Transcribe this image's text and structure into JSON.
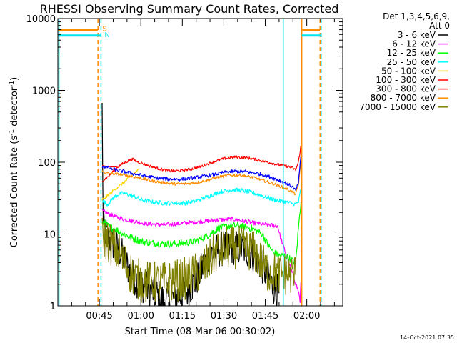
{
  "chart_data": {
    "type": "line",
    "title": "RHESSI Observing Summary Count Rates, Corrected",
    "xlabel": "Start Time (08-Mar-06 00:30:02)",
    "ylabel": "Corrected Count Rate (s",
    "ylabel_sup1": "-1",
    "ylabel_mid": " detector",
    "ylabel_sup2": "-1",
    "ylabel_end": ")",
    "yscale": "log",
    "ylim": [
      1,
      10000
    ],
    "xlim_minutes": [
      30,
      133
    ],
    "yticks": [
      {
        "value": 1,
        "label": "1"
      },
      {
        "value": 10,
        "label": "10"
      },
      {
        "value": 100,
        "label": "100"
      },
      {
        "value": 1000,
        "label": "1000"
      },
      {
        "value": 10000,
        "label": "10000"
      }
    ],
    "xticks": [
      {
        "minute": 45,
        "label": "00:45"
      },
      {
        "minute": 60,
        "label": "01:00"
      },
      {
        "minute": 75,
        "label": "01:15"
      },
      {
        "minute": 90,
        "label": "01:30"
      },
      {
        "minute": 105,
        "label": "01:45"
      },
      {
        "minute": 120,
        "label": "02:00"
      }
    ],
    "legend_header": [
      "Det 1,3,4,5,6,9,",
      "Att 0"
    ],
    "legend_position": "right",
    "series": [
      {
        "name": "3 - 6 keV",
        "color": "#000000",
        "noise": 0.25,
        "points": [
          [
            46,
            560
          ],
          [
            46.4,
            13
          ],
          [
            48,
            9
          ],
          [
            52,
            6
          ],
          [
            54,
            4.5
          ],
          [
            56,
            3
          ],
          [
            58,
            2.4
          ],
          [
            60,
            2
          ],
          [
            62,
            1.8
          ],
          [
            64,
            1.6
          ],
          [
            66,
            1.4
          ],
          [
            68,
            1.2
          ],
          [
            70,
            1.2
          ],
          [
            72,
            1.3
          ],
          [
            74,
            1.4
          ],
          [
            76,
            1.5
          ],
          [
            78,
            1.8
          ],
          [
            80,
            2.3
          ],
          [
            82,
            3.2
          ],
          [
            84,
            4.5
          ],
          [
            86,
            5.5
          ],
          [
            88,
            6
          ],
          [
            90,
            6.3
          ],
          [
            94,
            6.5
          ],
          [
            98,
            6
          ],
          [
            100,
            5.5
          ],
          [
            102,
            4.5
          ],
          [
            104,
            3.5
          ],
          [
            106,
            2.5
          ],
          [
            108,
            1.8
          ],
          [
            110,
            1.5
          ]
        ]
      },
      {
        "name": "6 - 12 keV",
        "color": "#ff00ff",
        "noise": 0.03,
        "points": [
          [
            46,
            21
          ],
          [
            50,
            18
          ],
          [
            54,
            16
          ],
          [
            58,
            15
          ],
          [
            62,
            14
          ],
          [
            66,
            13.5
          ],
          [
            70,
            13.5
          ],
          [
            74,
            14
          ],
          [
            78,
            14.5
          ],
          [
            82,
            15
          ],
          [
            86,
            15.5
          ],
          [
            90,
            16
          ],
          [
            94,
            16
          ],
          [
            98,
            15
          ],
          [
            102,
            14
          ],
          [
            106,
            13.5
          ],
          [
            109.5,
            13
          ],
          [
            110.5,
            9
          ],
          [
            117.2,
            1.5
          ],
          [
            117.6,
            1.1
          ],
          [
            117.9,
            2.2
          ]
        ]
      },
      {
        "name": "12 - 25 keV",
        "color": "#00ff00",
        "noise": 0.05,
        "points": [
          [
            46,
            15
          ],
          [
            48,
            13
          ],
          [
            52,
            11
          ],
          [
            56,
            9
          ],
          [
            60,
            8
          ],
          [
            64,
            7.5
          ],
          [
            68,
            7.3
          ],
          [
            72,
            7.3
          ],
          [
            76,
            7.5
          ],
          [
            80,
            8
          ],
          [
            84,
            9.5
          ],
          [
            88,
            12
          ],
          [
            92,
            13
          ],
          [
            96,
            13
          ],
          [
            100,
            12
          ],
          [
            104,
            10
          ],
          [
            106,
            7
          ],
          [
            108,
            5.5
          ],
          [
            110,
            5
          ],
          [
            112,
            5
          ],
          [
            114,
            4.5
          ],
          [
            116,
            4
          ],
          [
            117,
            12
          ],
          [
            117.9,
            28
          ]
        ]
      },
      {
        "name": "25 - 50 keV",
        "color": "#00ffff",
        "noise": 0.03,
        "points": [
          [
            46,
            29
          ],
          [
            48,
            26
          ],
          [
            50,
            32
          ],
          [
            52,
            36
          ],
          [
            54,
            37
          ],
          [
            56,
            35
          ],
          [
            58,
            33
          ],
          [
            60,
            30
          ],
          [
            64,
            28
          ],
          [
            68,
            27
          ],
          [
            72,
            27
          ],
          [
            76,
            27
          ],
          [
            80,
            29
          ],
          [
            84,
            33
          ],
          [
            88,
            38
          ],
          [
            92,
            41
          ],
          [
            96,
            41
          ],
          [
            100,
            38
          ],
          [
            104,
            34
          ],
          [
            108,
            30
          ],
          [
            112,
            28
          ],
          [
            114,
            27
          ],
          [
            116,
            26
          ],
          [
            117,
            28
          ],
          [
            117.9,
            42
          ]
        ]
      },
      {
        "name": "50 - 100 keV",
        "color": "#ffd700",
        "noise": 0.02,
        "points": [
          [
            46,
            30
          ],
          [
            48,
            34
          ],
          [
            50,
            40
          ],
          [
            52,
            46
          ],
          [
            54,
            53
          ],
          [
            56,
            62
          ],
          [
            58,
            72
          ],
          [
            59.5,
            80
          ]
        ]
      },
      {
        "name": "100 - 300 keV",
        "color": "#ff0000",
        "noise": 0.02,
        "points": [
          [
            46,
            55
          ],
          [
            48,
            62
          ],
          [
            50,
            75
          ],
          [
            52,
            88
          ],
          [
            54,
            98
          ],
          [
            55.5,
            105
          ],
          [
            57,
            110
          ],
          [
            59,
            101
          ],
          [
            62,
            92
          ],
          [
            66,
            82
          ],
          [
            70,
            76
          ],
          [
            74,
            76
          ],
          [
            78,
            80
          ],
          [
            82,
            88
          ],
          [
            86,
            100
          ],
          [
            90,
            112
          ],
          [
            94,
            118
          ],
          [
            98,
            116
          ],
          [
            102,
            108
          ],
          [
            106,
            100
          ],
          [
            110,
            92
          ],
          [
            113,
            88
          ],
          [
            115,
            82
          ],
          [
            116,
            78
          ],
          [
            117,
            100
          ],
          [
            117.9,
            170
          ]
        ]
      },
      {
        "name": "300 - 800 keV",
        "color": "#ff0000",
        "noise": 0.0,
        "points": [
          [
            46,
            90
          ],
          [
            48,
            87
          ],
          [
            50,
            86
          ],
          [
            51.5,
            87
          ]
        ]
      },
      {
        "name": "800 - 7000 keV",
        "color": "#ff8c00",
        "noise": 0.02,
        "points": [
          [
            46,
            75
          ],
          [
            48,
            70
          ],
          [
            52,
            68
          ],
          [
            56,
            64
          ],
          [
            60,
            60
          ],
          [
            64,
            55
          ],
          [
            68,
            52
          ],
          [
            72,
            50
          ],
          [
            76,
            50
          ],
          [
            80,
            52
          ],
          [
            84,
            56
          ],
          [
            88,
            62
          ],
          [
            92,
            66
          ],
          [
            96,
            66
          ],
          [
            100,
            62
          ],
          [
            104,
            56
          ],
          [
            108,
            50
          ],
          [
            112,
            44
          ],
          [
            114,
            40
          ],
          [
            116,
            36
          ],
          [
            117,
            48
          ],
          [
            117.9,
            110
          ]
        ]
      },
      {
        "name": "7000 - 15000 keV",
        "color": "#808000",
        "noise": 0.3,
        "points": [
          [
            46,
            9
          ],
          [
            48,
            8
          ],
          [
            52,
            5.5
          ],
          [
            54,
            4
          ],
          [
            56,
            3
          ],
          [
            58,
            2.5
          ],
          [
            60,
            2.2
          ],
          [
            64,
            2.1
          ],
          [
            68,
            2.1
          ],
          [
            72,
            2.2
          ],
          [
            76,
            2.4
          ],
          [
            80,
            2.8
          ],
          [
            84,
            3.8
          ],
          [
            86,
            5
          ],
          [
            88,
            6
          ],
          [
            92,
            6.5
          ],
          [
            96,
            6.5
          ],
          [
            100,
            6
          ],
          [
            102,
            5
          ],
          [
            104,
            3.8
          ],
          [
            106,
            3
          ],
          [
            110,
            2.8
          ],
          [
            114,
            2.7
          ],
          [
            116,
            2.7
          ]
        ]
      },
      {
        "name": "",
        "color": "#0000ff",
        "noise": 0.025,
        "points": [
          [
            46,
            88
          ],
          [
            48,
            84
          ],
          [
            50,
            80
          ],
          [
            54,
            74
          ],
          [
            58,
            68
          ],
          [
            62,
            64
          ],
          [
            66,
            60
          ],
          [
            70,
            58
          ],
          [
            74,
            58
          ],
          [
            78,
            60
          ],
          [
            82,
            63
          ],
          [
            86,
            67
          ],
          [
            90,
            72
          ],
          [
            94,
            75
          ],
          [
            98,
            74
          ],
          [
            102,
            70
          ],
          [
            106,
            64
          ],
          [
            110,
            56
          ],
          [
            113,
            50
          ],
          [
            115,
            45
          ],
          [
            116,
            40
          ],
          [
            117,
            52
          ],
          [
            117.9,
            120
          ]
        ]
      }
    ],
    "markers": [
      {
        "label": "S",
        "color": "#ff8c00",
        "level": 7000
      },
      {
        "label": "N",
        "color": "#00e5ee",
        "level": 5800
      }
    ],
    "vlines": [
      {
        "minute": 30.4,
        "color": "#00e5ee",
        "style": "solid"
      },
      {
        "minute": 44.5,
        "color": "#ff8c00",
        "style": "dashed"
      },
      {
        "minute": 45.6,
        "color": "#00e5ee",
        "style": "dashed"
      },
      {
        "minute": 111.5,
        "color": "#00e5ee",
        "style": "solid"
      },
      {
        "minute": 118.2,
        "color": "#ff8c00",
        "style": "solid"
      },
      {
        "minute": 124.8,
        "color": "#ff8c00",
        "style": "dashed"
      },
      {
        "minute": 125.2,
        "color": "#00e5ee",
        "style": "dashed"
      }
    ],
    "hbars": [
      {
        "from": 30,
        "to": 44.5,
        "level": 7000,
        "color": "#ff8c00"
      },
      {
        "from": 30,
        "to": 45.6,
        "level": 5800,
        "color": "#00e5ee"
      },
      {
        "from": 118.2,
        "to": 124.8,
        "level": 7000,
        "color": "#ff8c00"
      },
      {
        "from": 118.2,
        "to": 125.2,
        "level": 5800,
        "color": "#00e5ee"
      }
    ]
  },
  "footer": {
    "timestamp": "14-Oct-2021 07:35"
  }
}
